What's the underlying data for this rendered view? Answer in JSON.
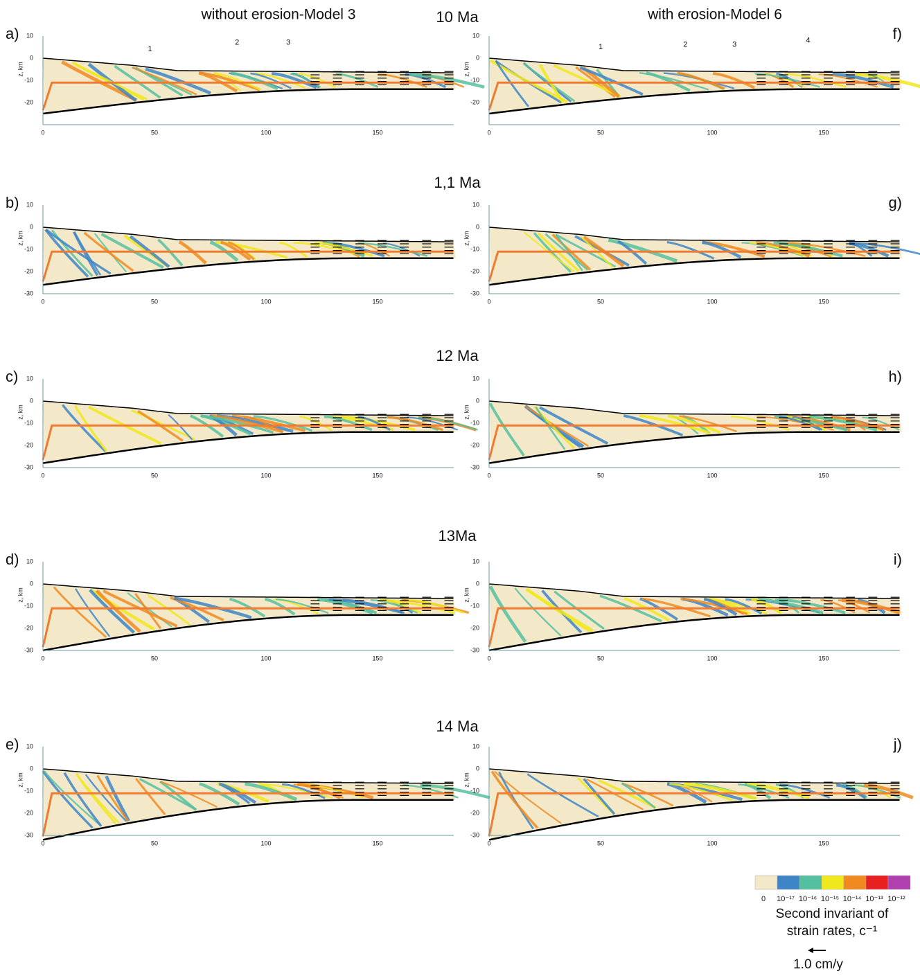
{
  "columns": [
    "without erosion-Model 3",
    "with erosion-Model 6"
  ],
  "times": [
    "10 Ma",
    "1,1 Ma",
    "12 Ma",
    "13Ma",
    "14 Ma"
  ],
  "axis_label": "z, km",
  "panels": [
    {
      "label": "a)",
      "yticks": [
        "10",
        "0",
        "-10",
        "-20"
      ],
      "xticks": [
        "0",
        "50",
        "100",
        "150"
      ],
      "peaks": [
        "1",
        "2",
        "3"
      ]
    },
    {
      "label": "b)",
      "yticks": [
        "10",
        "0",
        "-10",
        "-20",
        "-30"
      ],
      "xticks": [
        "0",
        "50",
        "100",
        "150"
      ]
    },
    {
      "label": "c)",
      "yticks": [
        "10",
        "0",
        "-10",
        "-20",
        "-30"
      ],
      "xticks": [
        "0",
        "50",
        "100",
        "150"
      ]
    },
    {
      "label": "d)",
      "yticks": [
        "10",
        "0",
        "-10",
        "-20",
        "-30"
      ],
      "xticks": [
        "0",
        "50",
        "100",
        "150"
      ]
    },
    {
      "label": "e)",
      "yticks": [
        "10",
        "0",
        "-10",
        "-20",
        "-30"
      ],
      "xticks": [
        "0",
        "50",
        "100",
        "150"
      ]
    },
    {
      "label": "f)",
      "yticks": [
        "10",
        "0",
        "-10",
        "-20"
      ],
      "xticks": [
        "0",
        "50",
        "100",
        "150"
      ],
      "peaks": [
        "1",
        "2",
        "3",
        "4"
      ]
    },
    {
      "label": "g)",
      "yticks": [
        "10",
        "0",
        "-10",
        "-20",
        "-30"
      ],
      "xticks": [
        "0",
        "50",
        "100",
        "150"
      ]
    },
    {
      "label": "h)",
      "yticks": [
        "10",
        "0",
        "-10",
        "-20",
        "-30"
      ],
      "xticks": [
        "0",
        "50",
        "100",
        "150"
      ]
    },
    {
      "label": "i)",
      "yticks": [
        "10",
        "0",
        "-10",
        "-20",
        "-30"
      ],
      "xticks": [
        "0",
        "50",
        "100",
        "150"
      ]
    },
    {
      "label": "j)",
      "yticks": [
        "10",
        "0",
        "-10",
        "-20",
        "-30"
      ],
      "xticks": [
        "0",
        "50",
        "100",
        "150"
      ]
    }
  ],
  "legend": {
    "labels": [
      "0",
      "10⁻¹⁷",
      "10⁻¹⁶",
      "10⁻¹⁵",
      "10⁻¹⁴",
      "10⁻¹³",
      "10⁻¹²"
    ],
    "title": [
      "Second invariant of",
      "strain rates, c⁻¹"
    ],
    "scale": "1.0 cm/y"
  }
}
